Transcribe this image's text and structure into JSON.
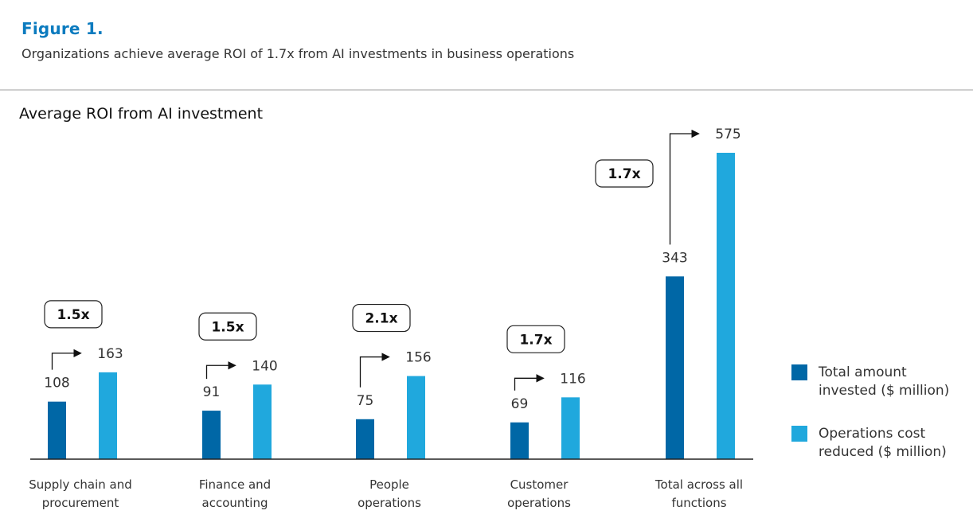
{
  "figure": {
    "label": "Figure 1.",
    "subtitle": "Organizations achieve average ROI of 1.7x from AI investments in business operations"
  },
  "chart_data": {
    "type": "bar",
    "title": "Average ROI from AI investment",
    "xlabel": "",
    "ylabel": "",
    "ylim": [
      0,
      575
    ],
    "grid": false,
    "legend_position": "right",
    "categories": [
      [
        "Supply chain and",
        "procurement"
      ],
      [
        "Finance and",
        "accounting"
      ],
      [
        "People",
        "operations"
      ],
      [
        "Customer",
        "operations"
      ],
      [
        "Total across all",
        "functions"
      ]
    ],
    "series": [
      {
        "name": [
          "Total amount",
          "invested ($ million)"
        ],
        "color": "#0067a6",
        "values": [
          108,
          91,
          75,
          69,
          343
        ]
      },
      {
        "name": [
          "Operations cost",
          "reduced ($ million)"
        ],
        "color": "#20a8dd",
        "values": [
          163,
          140,
          156,
          116,
          575
        ]
      }
    ],
    "roi_labels": [
      "1.5x",
      "1.5x",
      "2.1x",
      "1.7x",
      "1.7x"
    ]
  }
}
